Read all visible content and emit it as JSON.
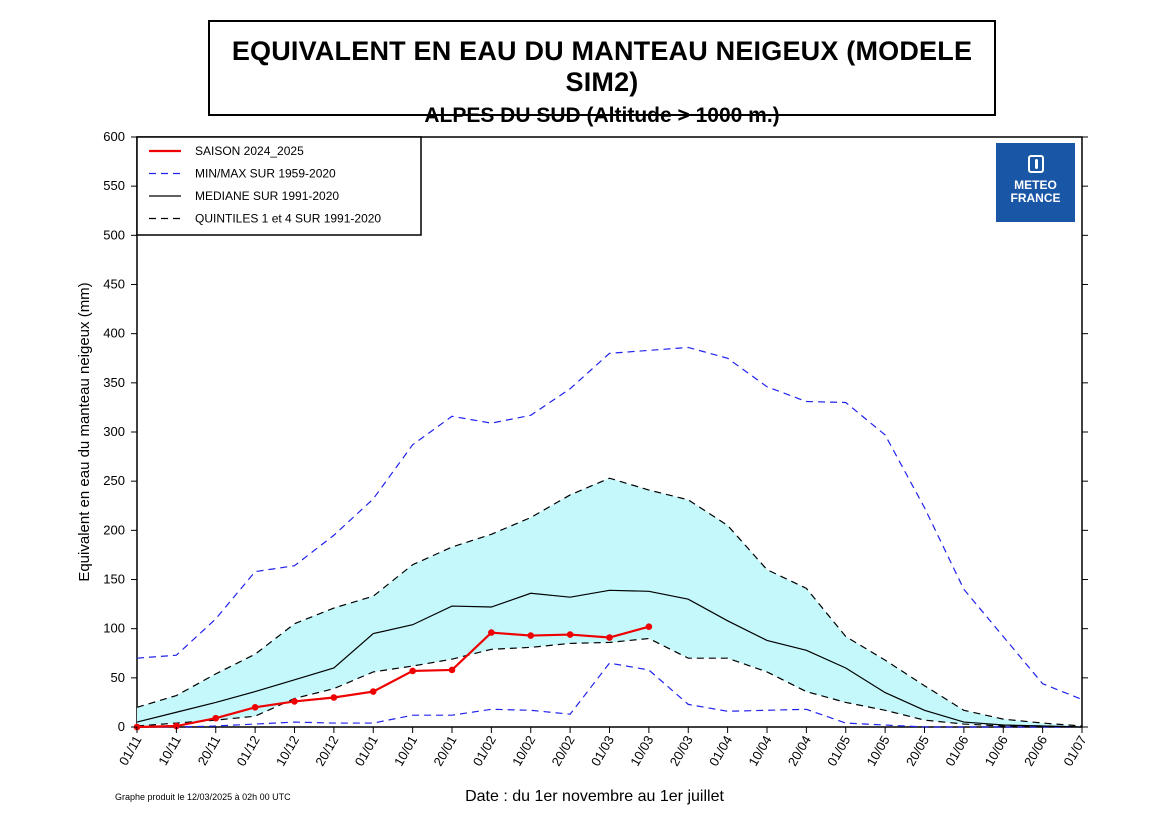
{
  "title": "EQUIVALENT EN EAU DU MANTEAU NEIGEUX (MODELE SIM2)",
  "subtitle": "ALPES DU SUD (Altitude > 1000 m.)",
  "footer_note": "Graphe produit le 12/03/2025 à 02h 00 UTC",
  "logo": {
    "line1": "METEO",
    "line2": "FRANCE",
    "icon": "meteo-france-emblem-icon",
    "color": "#1a56a6"
  },
  "chart_data": {
    "type": "line",
    "ylabel": "Equivalent en eau du manteau neigeux (mm)",
    "xlabel": "Date : du 1er novembre au 1er juillet",
    "ylim": [
      0,
      600
    ],
    "yticks": [
      0,
      50,
      100,
      150,
      200,
      250,
      300,
      350,
      400,
      450,
      500,
      550,
      600
    ],
    "categories": [
      "01/11",
      "10/11",
      "20/11",
      "01/12",
      "10/12",
      "20/12",
      "01/01",
      "10/01",
      "20/01",
      "01/02",
      "10/02",
      "20/02",
      "01/03",
      "10/03",
      "20/03",
      "01/04",
      "10/04",
      "20/04",
      "01/05",
      "10/05",
      "20/05",
      "01/06",
      "10/06",
      "20/06",
      "01/07"
    ],
    "legend_position": "top-left",
    "band_color": "#c4f8fb",
    "series": [
      {
        "name": "SAISON 2024_2025",
        "style": "solid-markers",
        "color": "#ee0000",
        "values": [
          0,
          1,
          9,
          20,
          26,
          30,
          36,
          57,
          58,
          96,
          93,
          94,
          91,
          102,
          null,
          null,
          null,
          null,
          null,
          null,
          null,
          null,
          null,
          null,
          null
        ]
      },
      {
        "name": "MIN/MAX SUR 1959-2020",
        "style": "dashed",
        "color": "#2222ee",
        "values": [
          70,
          73,
          110,
          158,
          164,
          195,
          232,
          287,
          316,
          309,
          317,
          344,
          380,
          383,
          386,
          375,
          346,
          331,
          330,
          297,
          223,
          140,
          92,
          44,
          28
        ]
      },
      {
        "name": "MIN/MAX SUR 1959-2020 (min)",
        "style": "dashed",
        "color": "#2222ee",
        "legend": false,
        "values": [
          0,
          0,
          1,
          3,
          5,
          4,
          4,
          12,
          12,
          18,
          17,
          13,
          65,
          58,
          23,
          16,
          17,
          18,
          4,
          2,
          0,
          0,
          0,
          0,
          0
        ]
      },
      {
        "name": "MEDIANE SUR 1991-2020",
        "style": "solid",
        "color": "#000000",
        "values": [
          5,
          15,
          25,
          36,
          48,
          60,
          95,
          104,
          123,
          122,
          136,
          132,
          139,
          138,
          130,
          108,
          88,
          78,
          60,
          35,
          17,
          5,
          2,
          1,
          0
        ]
      },
      {
        "name": "QUINTILES 1 et 4 SUR 1991-2020",
        "style": "dashed",
        "color": "#000000",
        "values": [
          20,
          32,
          54,
          74,
          105,
          121,
          133,
          165,
          183,
          196,
          213,
          236,
          253,
          241,
          231,
          205,
          160,
          141,
          92,
          68,
          42,
          17,
          8,
          4,
          1
        ]
      },
      {
        "name": "QUINTILES 1 et 4 SUR 1991-2020 (q1)",
        "style": "dashed",
        "color": "#000000",
        "legend": false,
        "values": [
          1,
          4,
          7,
          11,
          29,
          39,
          56,
          62,
          69,
          79,
          81,
          85,
          86,
          90,
          70,
          70,
          56,
          36,
          25,
          17,
          7,
          3,
          1,
          1,
          0
        ]
      }
    ]
  }
}
